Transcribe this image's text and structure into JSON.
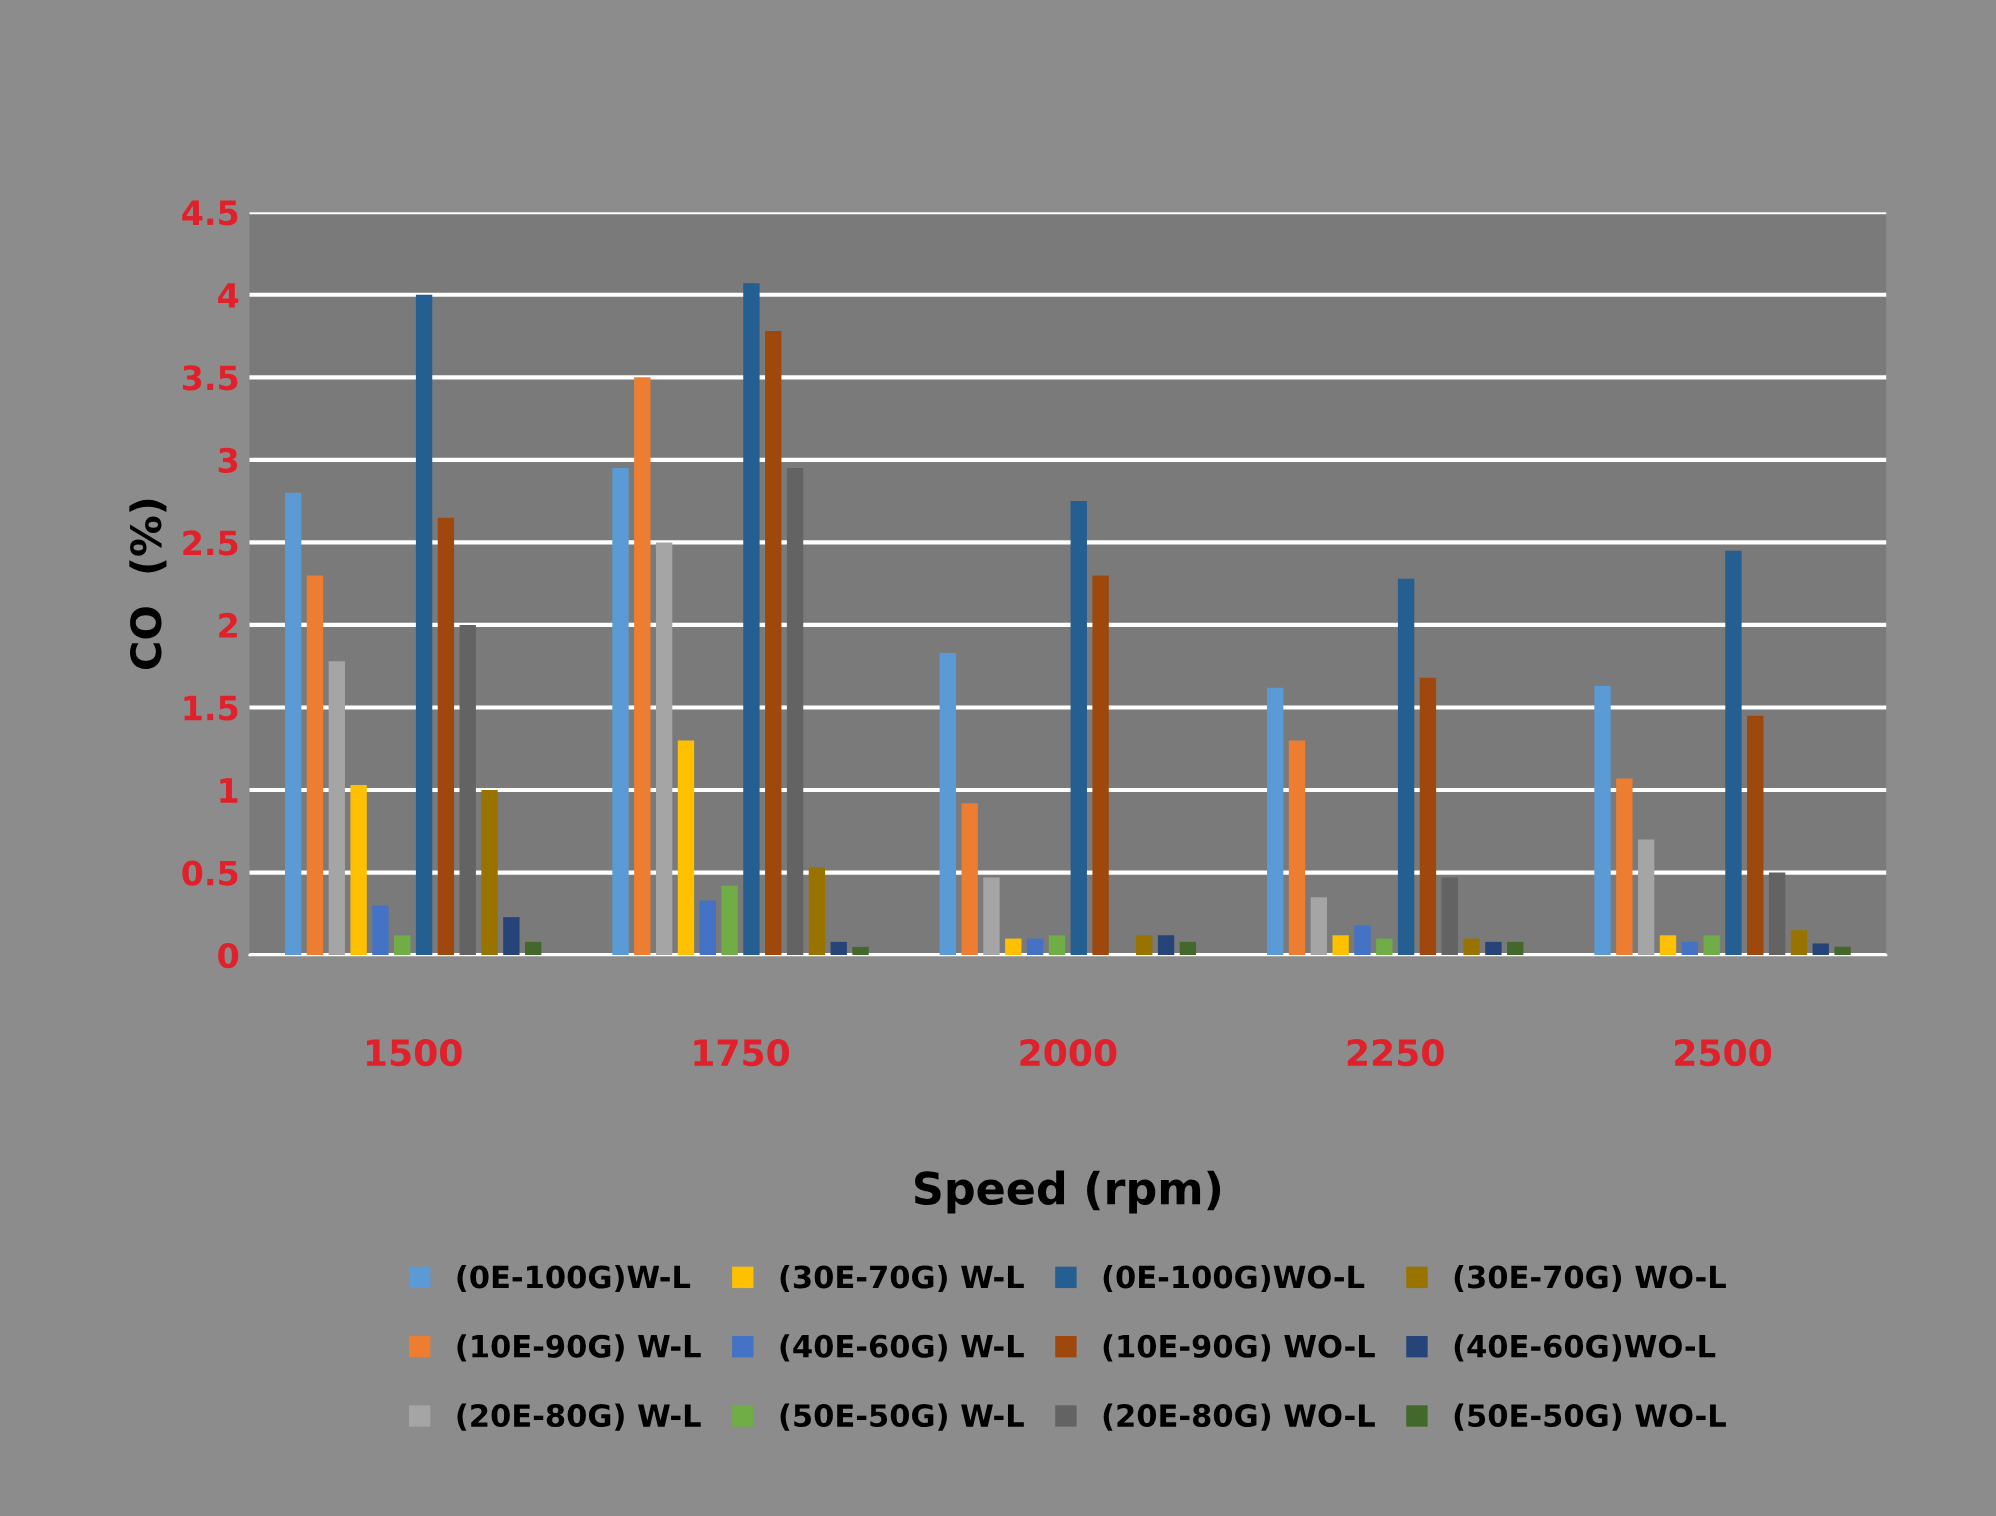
{
  "chart_data": {
    "type": "bar",
    "xlabel": "Speed (rpm)",
    "ylabel": "CO  (%)",
    "categories": [
      "1500",
      "1750",
      "2000",
      "2250",
      "2500"
    ],
    "ylim": [
      0,
      4.5
    ],
    "yticks": [
      0,
      0.5,
      1,
      1.5,
      2,
      2.5,
      3,
      3.5,
      4,
      4.5
    ],
    "grid": "y",
    "legend": "bottom",
    "series": [
      {
        "name": "(0E-100G)W-L",
        "color": "#5b9bd5",
        "values": [
          2.8,
          2.95,
          1.83,
          1.62,
          1.63
        ]
      },
      {
        "name": "(10E-90G) W-L",
        "color": "#ed7d31",
        "values": [
          2.3,
          3.5,
          0.92,
          1.3,
          1.07
        ]
      },
      {
        "name": "(20E-80G) W-L",
        "color": "#a5a5a5",
        "values": [
          1.78,
          2.5,
          0.47,
          0.35,
          0.7
        ]
      },
      {
        "name": "(30E-70G) W-L",
        "color": "#ffc000",
        "values": [
          1.03,
          1.3,
          0.1,
          0.12,
          0.12
        ]
      },
      {
        "name": "(40E-60G) W-L",
        "color": "#4472c4",
        "values": [
          0.3,
          0.33,
          0.1,
          0.18,
          0.08
        ]
      },
      {
        "name": "(50E-50G) W-L",
        "color": "#70ad47",
        "values": [
          0.12,
          0.42,
          0.12,
          0.1,
          0.12
        ]
      },
      {
        "name": "(0E-100G)WO-L",
        "color": "#255e91",
        "values": [
          4.0,
          4.07,
          2.75,
          2.28,
          2.45
        ]
      },
      {
        "name": "(10E-90G) WO-L",
        "color": "#9e480e",
        "values": [
          2.65,
          3.78,
          2.3,
          1.68,
          1.45
        ]
      },
      {
        "name": "(20E-80G) WO-L",
        "color": "#636363",
        "values": [
          2.0,
          2.95,
          0,
          0.47,
          0.5
        ]
      },
      {
        "name": "(30E-70G) WO-L",
        "color": "#997300",
        "values": [
          1.0,
          0.53,
          0.12,
          0.1,
          0.15
        ]
      },
      {
        "name": "(40E-60G)WO-L",
        "color": "#264478",
        "values": [
          0.23,
          0.08,
          0.12,
          0.08,
          0.07
        ]
      },
      {
        "name": "(50E-50G) WO-L",
        "color": "#43682b",
        "values": [
          0.08,
          0.05,
          0.08,
          0.08,
          0.05
        ]
      }
    ]
  }
}
